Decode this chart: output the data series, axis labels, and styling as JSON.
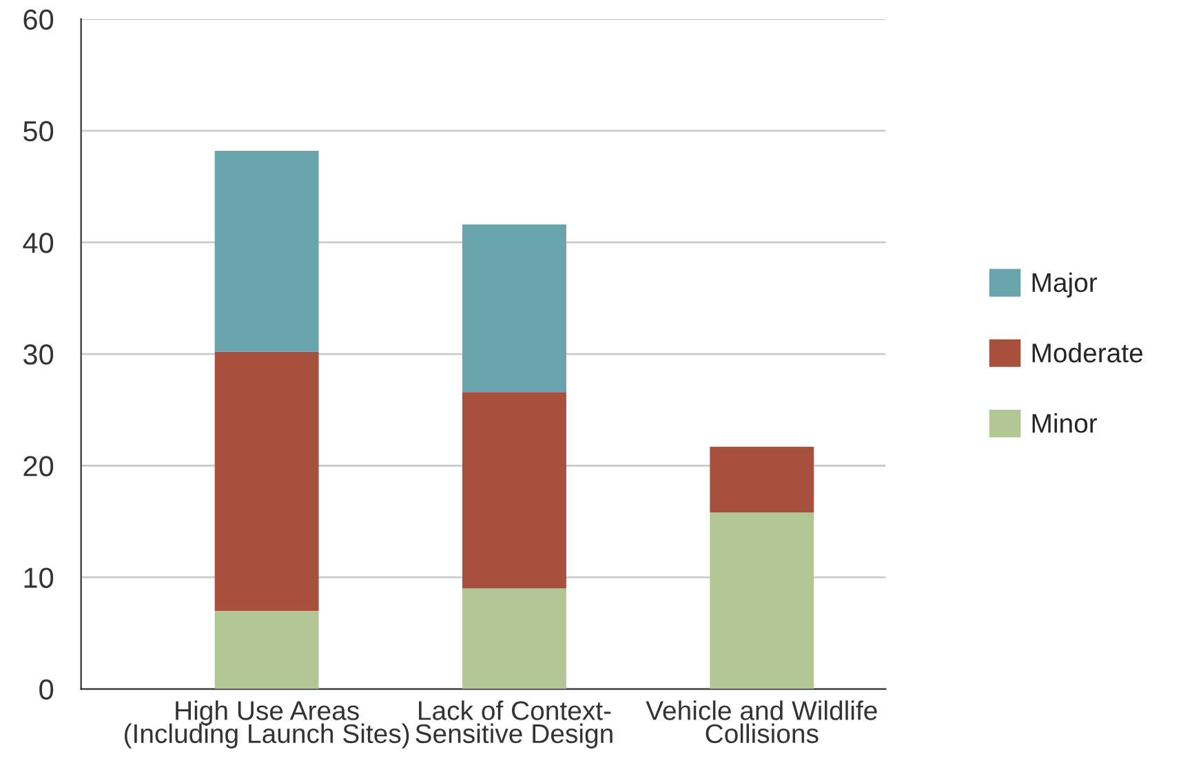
{
  "chart_data": {
    "type": "bar",
    "stacked": true,
    "categories": [
      "High Use Areas\n(Including Launch Sites)",
      "Lack of Context-\nSensitive Design",
      "Vehicle and Wildlife\nCollisions"
    ],
    "series": [
      {
        "name": "Minor",
        "color": "#b2c695",
        "values": [
          7.0,
          9.0,
          15.8
        ]
      },
      {
        "name": "Moderate",
        "color": "#a6503d",
        "values": [
          23.2,
          17.6,
          5.9
        ]
      },
      {
        "name": "Major",
        "color": "#69a4ad",
        "values": [
          18.0,
          15.0,
          null
        ]
      }
    ],
    "ylim": [
      0,
      60
    ],
    "yticks": [
      0,
      10,
      20,
      30,
      40,
      50,
      60
    ],
    "grid": "y",
    "legend": "right"
  }
}
